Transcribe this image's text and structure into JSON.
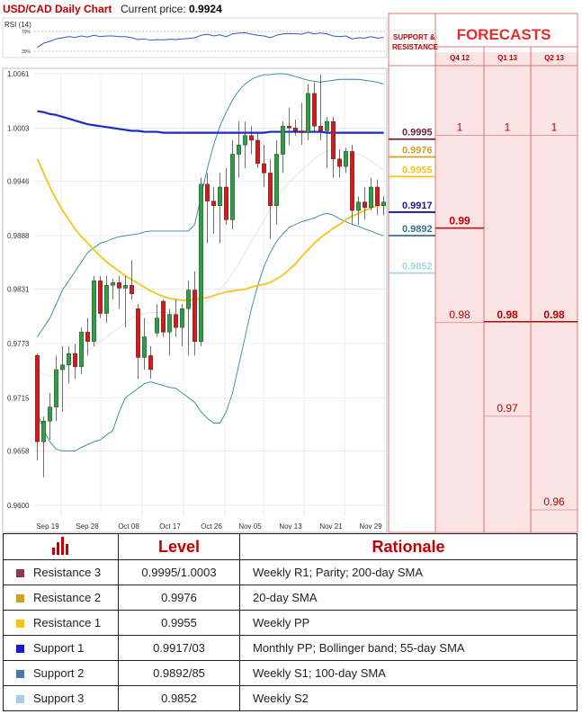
{
  "header": {
    "title": "USD/CAD Daily Chart",
    "price_label": "Current price:",
    "price_value": "0.9924"
  },
  "rsi": {
    "label": "RSI (14)",
    "ticks": [
      "70%",
      "30%"
    ]
  },
  "forecast_panel": {
    "sr_header": "SUPPORT & RESISTANCE",
    "title": "FORECASTS",
    "columns": [
      "Q4 12",
      "Q1 13",
      "Q2 13"
    ],
    "sr_levels": [
      {
        "text": "0.9995",
        "value": 0.9995,
        "color": "#6e1f3a"
      },
      {
        "text": "0.9976",
        "value": 0.9976,
        "color": "#c9a227"
      },
      {
        "text": "0.9955",
        "value": 0.9955,
        "color": "#f5c518"
      },
      {
        "text": "0.9917",
        "value": 0.9917,
        "color": "#1a1aa0"
      },
      {
        "text": "0.9892",
        "value": 0.9892,
        "color": "#3d6f94"
      },
      {
        "text": "0.9852",
        "value": 0.9852,
        "color": "#a9d6e5"
      }
    ],
    "forecasts": [
      {
        "column": "Q4 12",
        "items": [
          {
            "text": "1",
            "value": 1.0
          },
          {
            "text": "0.99",
            "value": 0.99,
            "bold": true
          },
          {
            "text": "0.98",
            "value": 0.98
          }
        ]
      },
      {
        "column": "Q1 13",
        "items": [
          {
            "text": "1",
            "value": 1.0
          },
          {
            "text": "0.98",
            "value": 0.98,
            "bold": true
          },
          {
            "text": "0.97",
            "value": 0.97
          }
        ]
      },
      {
        "column": "Q2 13",
        "items": [
          {
            "text": "1",
            "value": 1.0
          },
          {
            "text": "0.98",
            "value": 0.98,
            "bold": true
          },
          {
            "text": "0.96",
            "value": 0.96
          }
        ]
      }
    ]
  },
  "chart_data": {
    "type": "candlestick",
    "title": "USD/CAD Daily Chart",
    "y_ticks": [
      "1.0061",
      "1.0003",
      "0.9946",
      "0.9888",
      "0.9831",
      "0.9773",
      "0.9715",
      "0.9658",
      "0.9600"
    ],
    "x_ticks": [
      "Sep 19",
      "Sep 28",
      "Oct 08",
      "Oct 17",
      "Oct 26",
      "Nov 05",
      "Nov 13",
      "Nov 21",
      "Nov 29"
    ],
    "ylim": [
      0.96,
      1.0061
    ],
    "grid": true,
    "candles": [
      {
        "o": 0.976,
        "h": 0.9762,
        "l": 0.9648,
        "c": 0.9668
      },
      {
        "o": 0.9668,
        "h": 0.9695,
        "l": 0.963,
        "c": 0.969
      },
      {
        "o": 0.969,
        "h": 0.972,
        "l": 0.967,
        "c": 0.9705
      },
      {
        "o": 0.9705,
        "h": 0.976,
        "l": 0.969,
        "c": 0.9745
      },
      {
        "o": 0.9745,
        "h": 0.977,
        "l": 0.97,
        "c": 0.975
      },
      {
        "o": 0.975,
        "h": 0.977,
        "l": 0.973,
        "c": 0.9762
      },
      {
        "o": 0.9762,
        "h": 0.9772,
        "l": 0.9735,
        "c": 0.9748
      },
      {
        "o": 0.9748,
        "h": 0.979,
        "l": 0.974,
        "c": 0.9785
      },
      {
        "o": 0.9785,
        "h": 0.98,
        "l": 0.976,
        "c": 0.9775
      },
      {
        "o": 0.9775,
        "h": 0.9845,
        "l": 0.977,
        "c": 0.984
      },
      {
        "o": 0.984,
        "h": 0.9845,
        "l": 0.98,
        "c": 0.9805
      },
      {
        "o": 0.9805,
        "h": 0.9845,
        "l": 0.9795,
        "c": 0.9835
      },
      {
        "o": 0.9835,
        "h": 0.9842,
        "l": 0.982,
        "c": 0.9838
      },
      {
        "o": 0.9838,
        "h": 0.9845,
        "l": 0.981,
        "c": 0.9832
      },
      {
        "o": 0.9832,
        "h": 0.9845,
        "l": 0.979,
        "c": 0.9835
      },
      {
        "o": 0.9835,
        "h": 0.9862,
        "l": 0.982,
        "c": 0.9826
      },
      {
        "o": 0.981,
        "h": 0.9815,
        "l": 0.9735,
        "c": 0.9758
      },
      {
        "o": 0.9758,
        "h": 0.98,
        "l": 0.9745,
        "c": 0.978
      },
      {
        "o": 0.976,
        "h": 0.977,
        "l": 0.9735,
        "c": 0.9745
      },
      {
        "o": 0.9784,
        "h": 0.9815,
        "l": 0.978,
        "c": 0.98
      },
      {
        "o": 0.9818,
        "h": 0.982,
        "l": 0.978,
        "c": 0.9785
      },
      {
        "o": 0.9785,
        "h": 0.981,
        "l": 0.976,
        "c": 0.9804
      },
      {
        "o": 0.9804,
        "h": 0.982,
        "l": 0.978,
        "c": 0.979
      },
      {
        "o": 0.979,
        "h": 0.9815,
        "l": 0.977,
        "c": 0.981
      },
      {
        "o": 0.981,
        "h": 0.984,
        "l": 0.976,
        "c": 0.983
      },
      {
        "o": 0.983,
        "h": 0.985,
        "l": 0.976,
        "c": 0.9775
      },
      {
        "o": 0.9775,
        "h": 0.995,
        "l": 0.977,
        "c": 0.9943
      },
      {
        "o": 0.9943,
        "h": 0.9955,
        "l": 0.988,
        "c": 0.9925
      },
      {
        "o": 0.9925,
        "h": 0.994,
        "l": 0.989,
        "c": 0.992
      },
      {
        "o": 0.992,
        "h": 0.9955,
        "l": 0.988,
        "c": 0.994
      },
      {
        "o": 0.994,
        "h": 0.996,
        "l": 0.99,
        "c": 0.9905
      },
      {
        "o": 0.9905,
        "h": 0.999,
        "l": 0.9895,
        "c": 0.9975
      },
      {
        "o": 0.9975,
        "h": 1.001,
        "l": 0.995,
        "c": 0.9985
      },
      {
        "o": 0.9985,
        "h": 1.001,
        "l": 0.996,
        "c": 0.9995
      },
      {
        "o": 0.9995,
        "h": 1.0005,
        "l": 0.9975,
        "c": 0.999
      },
      {
        "o": 0.999,
        "h": 0.9998,
        "l": 0.996,
        "c": 0.9965
      },
      {
        "o": 0.9965,
        "h": 0.9985,
        "l": 0.994,
        "c": 0.9955
      },
      {
        "o": 0.9955,
        "h": 0.997,
        "l": 0.9885,
        "c": 0.992
      },
      {
        "o": 0.992,
        "h": 0.999,
        "l": 0.99,
        "c": 0.9975
      },
      {
        "o": 0.9975,
        "h": 1.001,
        "l": 0.9955,
        "c": 1.0005
      },
      {
        "o": 1.0005,
        "h": 1.0025,
        "l": 0.9985,
        "c": 1.0003
      },
      {
        "o": 1.0003,
        "h": 1.0012,
        "l": 0.9995,
        "c": 1.0
      },
      {
        "o": 1.0,
        "h": 1.003,
        "l": 0.9985,
        "c": 0.9998
      },
      {
        "o": 0.9998,
        "h": 1.005,
        "l": 0.999,
        "c": 1.004
      },
      {
        "o": 1.004,
        "h": 1.0052,
        "l": 1.0,
        "c": 1.0005
      },
      {
        "o": 1.0005,
        "h": 1.006,
        "l": 0.999,
        "c": 1.0
      },
      {
        "o": 1.0,
        "h": 1.0015,
        "l": 0.996,
        "c": 1.001
      },
      {
        "o": 1.001,
        "h": 1.0015,
        "l": 0.995,
        "c": 0.997
      },
      {
        "o": 0.997,
        "h": 0.998,
        "l": 0.995,
        "c": 0.9962
      },
      {
        "o": 0.9962,
        "h": 0.9982,
        "l": 0.9955,
        "c": 0.9978
      },
      {
        "o": 0.9978,
        "h": 0.9985,
        "l": 0.99,
        "c": 0.9915
      },
      {
        "o": 0.9915,
        "h": 0.993,
        "l": 0.99,
        "c": 0.9924
      },
      {
        "o": 0.9924,
        "h": 0.994,
        "l": 0.9905,
        "c": 0.9918
      },
      {
        "o": 0.9918,
        "h": 0.995,
        "l": 0.9915,
        "c": 0.994
      },
      {
        "o": 0.994,
        "h": 0.9948,
        "l": 0.991,
        "c": 0.992
      },
      {
        "o": 0.992,
        "h": 0.993,
        "l": 0.991,
        "c": 0.9924
      }
    ],
    "sma200": [
      1.0021,
      1.002,
      1.0018,
      1.0017,
      1.0015,
      1.0013,
      1.0011,
      1.0009,
      1.0007,
      1.0006,
      1.0005,
      1.0004,
      1.0003,
      1.0002,
      1.0001,
      1.0,
      1.0,
      0.9999,
      0.9999,
      0.9999,
      0.9998,
      0.9998,
      0.9998,
      0.9998,
      0.9998,
      0.9998,
      0.9998,
      0.9998,
      0.9998,
      0.9998,
      0.9998,
      0.9998,
      0.9998,
      0.9998,
      0.9998,
      0.9998,
      0.9998,
      0.9999,
      0.9999,
      0.9999,
      0.9999,
      0.9999,
      0.9999,
      0.9999,
      0.9999,
      0.9999,
      0.9998,
      0.9998,
      0.9998,
      0.9998,
      0.9998,
      0.9998,
      0.9998,
      0.9998,
      0.9998,
      0.9998
    ],
    "sma55": [
      0.997,
      0.9955,
      0.994,
      0.9927,
      0.9915,
      0.9905,
      0.9895,
      0.9887,
      0.988,
      0.9873,
      0.9866,
      0.986,
      0.9855,
      0.985,
      0.9845,
      0.9841,
      0.9837,
      0.9833,
      0.9829,
      0.9826,
      0.9823,
      0.9821,
      0.982,
      0.9819,
      0.9819,
      0.982,
      0.9821,
      0.9822,
      0.9824,
      0.9826,
      0.9828,
      0.9829,
      0.983,
      0.9831,
      0.9833,
      0.9835,
      0.9836,
      0.9838,
      0.9842,
      0.9846,
      0.9852,
      0.9858,
      0.9866,
      0.9873,
      0.988,
      0.9886,
      0.9891,
      0.9896,
      0.99,
      0.9905,
      0.9909,
      0.9912,
      0.9915,
      0.9918,
      0.992,
      0.9922
    ],
    "bb_upper": [
      0.978,
      0.979,
      0.98,
      0.9815,
      0.983,
      0.984,
      0.985,
      0.986,
      0.987,
      0.9875,
      0.988,
      0.9882,
      0.9885,
      0.9887,
      0.9888,
      0.9889,
      0.989,
      0.9892,
      0.9893,
      0.9893,
      0.9893,
      0.9893,
      0.9893,
      0.9893,
      0.9893,
      0.99,
      0.993,
      0.996,
      0.9985,
      1.0005,
      1.002,
      1.0033,
      1.0043,
      1.005,
      1.0055,
      1.0058,
      1.006,
      1.006,
      1.0061,
      1.0061,
      1.006,
      1.0058,
      1.0056,
      1.0054,
      1.0053,
      1.0052,
      1.0053,
      1.0054,
      1.0055,
      1.0055,
      1.0055,
      1.0055,
      1.0054,
      1.0053,
      1.0052,
      1.005
    ],
    "bb_lower": [
      0.97,
      0.968,
      0.9668,
      0.966,
      0.9658,
      0.9658,
      0.9658,
      0.9662,
      0.9665,
      0.9668,
      0.967,
      0.9675,
      0.968,
      0.97,
      0.9715,
      0.972,
      0.9725,
      0.973,
      0.9732,
      0.973,
      0.9728,
      0.9726,
      0.9725,
      0.972,
      0.9715,
      0.971,
      0.97,
      0.9693,
      0.9688,
      0.9688,
      0.97,
      0.972,
      0.975,
      0.978,
      0.981,
      0.9835,
      0.9855,
      0.987,
      0.9882,
      0.989,
      0.9897,
      0.99,
      0.9903,
      0.9905,
      0.9907,
      0.991,
      0.9912,
      0.991,
      0.9906,
      0.9903,
      0.99,
      0.9898,
      0.9895,
      0.9893,
      0.989,
      0.9888
    ],
    "bb_mid": [
      0.9745,
      0.974,
      0.9738,
      0.974,
      0.9745,
      0.975,
      0.9755,
      0.976,
      0.9765,
      0.977,
      0.9775,
      0.978,
      0.9785,
      0.979,
      0.9795,
      0.98,
      0.9803,
      0.9805,
      0.9806,
      0.9806,
      0.9806,
      0.9806,
      0.9806,
      0.9807,
      0.9808,
      0.981,
      0.9813,
      0.9818,
      0.9823,
      0.983,
      0.9838,
      0.9848,
      0.9858,
      0.987,
      0.9882,
      0.9893,
      0.9905,
      0.9917,
      0.9927,
      0.9937,
      0.9945,
      0.9952,
      0.9958,
      0.9964,
      0.997,
      0.9975,
      0.9978,
      0.998,
      0.998,
      0.9979,
      0.9977,
      0.9975,
      0.9972,
      0.9968,
      0.9963,
      0.9958
    ],
    "rsi_values": [
      0.28,
      0.4,
      0.45,
      0.52,
      0.55,
      0.58,
      0.56,
      0.6,
      0.57,
      0.62,
      0.58,
      0.6,
      0.6,
      0.58,
      0.58,
      0.55,
      0.5,
      0.52,
      0.48,
      0.5,
      0.49,
      0.51,
      0.5,
      0.52,
      0.53,
      0.55,
      0.62,
      0.65,
      0.6,
      0.63,
      0.58,
      0.66,
      0.68,
      0.69,
      0.65,
      0.62,
      0.6,
      0.55,
      0.62,
      0.66,
      0.67,
      0.66,
      0.65,
      0.7,
      0.66,
      0.68,
      0.66,
      0.6,
      0.58,
      0.6,
      0.52,
      0.55,
      0.54,
      0.58,
      0.54,
      0.56
    ]
  },
  "levels_table": {
    "headers": {
      "level": "Level",
      "rationale": "Rationale"
    },
    "rows": [
      {
        "name": "Resistance 3",
        "color": "#8a3a4a",
        "level": "0.9995/1.0003",
        "rationale": "Weekly R1; Parity; 200-day SMA"
      },
      {
        "name": "Resistance 2",
        "color": "#c9a227",
        "level": "0.9976",
        "rationale": "20-day SMA"
      },
      {
        "name": "Resistance 1",
        "color": "#f5c518",
        "level": "0.9955",
        "rationale": "Weekly PP"
      },
      {
        "name": "Support 1",
        "color": "#1a1acc",
        "level": "0.9917/03",
        "rationale": "Monthly PP; Bollinger band; 55-day SMA"
      },
      {
        "name": "Support 2",
        "color": "#4a78a8",
        "level": "0.9892/85",
        "rationale": "Weekly S1; 100-day SMA"
      },
      {
        "name": "Support 3",
        "color": "#a9cce3",
        "level": "0.9852",
        "rationale": "Weekly S2"
      }
    ]
  }
}
